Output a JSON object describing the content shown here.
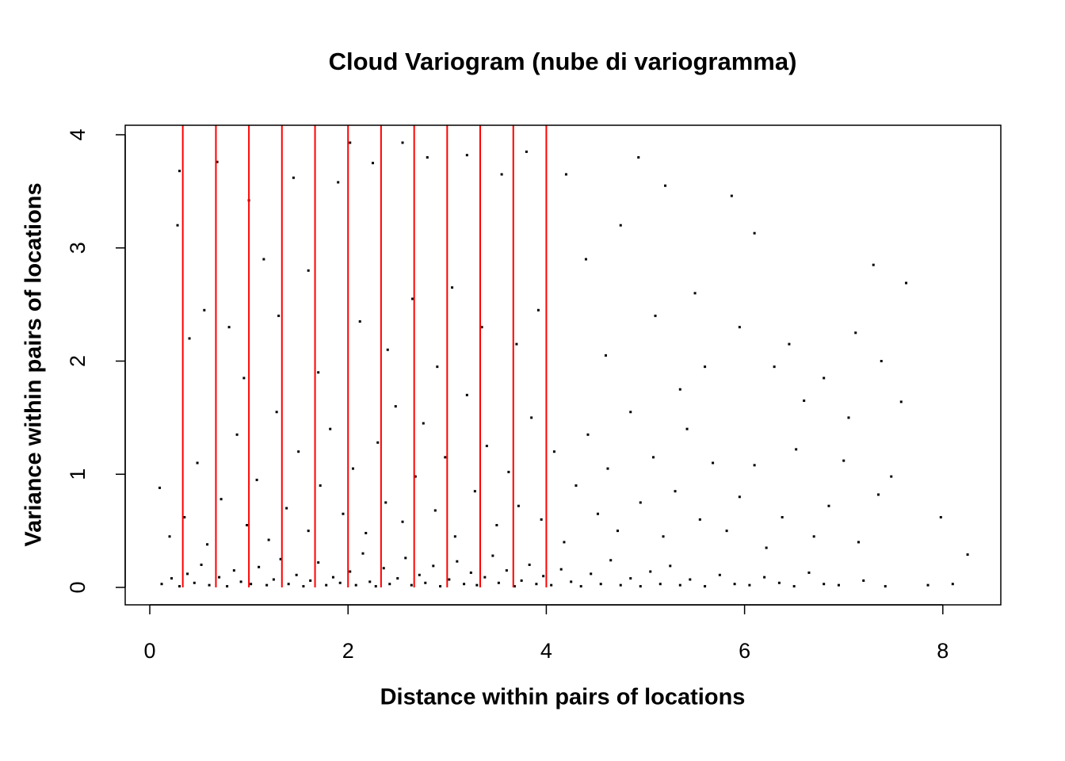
{
  "chart_data": {
    "type": "scatter",
    "title": "Cloud Variogram (nube di variogramma)",
    "x_label": "Distance within pairs of locations",
    "y_label": "Variance within pairs of locations",
    "color": "#000000",
    "xlim": [
      -0.248,
      8.585
    ],
    "ylim": [
      -0.154,
      4.084
    ],
    "xticks": [
      0,
      2,
      4,
      6,
      8
    ],
    "yticks": [
      0,
      1,
      2,
      3,
      4
    ],
    "vlines": [
      0.333,
      0.667,
      1.0,
      1.333,
      1.667,
      2.0,
      2.333,
      2.667,
      3.0,
      3.333,
      3.667,
      4.0
    ],
    "vline_color": "#ff0000",
    "x": [
      0.12,
      0.22,
      0.3,
      0.38,
      0.45,
      0.52,
      0.6,
      0.7,
      0.78,
      0.85,
      0.92,
      1.02,
      1.1,
      1.18,
      1.25,
      1.32,
      1.4,
      1.48,
      1.55,
      1.62,
      1.7,
      1.78,
      1.85,
      1.92,
      2.02,
      2.08,
      2.15,
      2.22,
      2.28,
      2.36,
      2.42,
      2.5,
      2.58,
      2.64,
      2.72,
      2.78,
      2.86,
      2.93,
      3.02,
      3.1,
      3.17,
      3.24,
      3.3,
      3.38,
      3.46,
      3.52,
      3.6,
      3.68,
      3.75,
      3.83,
      3.9,
      3.97,
      4.05,
      4.15,
      4.25,
      4.35,
      4.45,
      4.55,
      4.65,
      4.75,
      4.85,
      4.95,
      5.05,
      5.15,
      5.25,
      5.35,
      5.45,
      5.6,
      5.75,
      5.9,
      6.05,
      6.2,
      6.35,
      6.5,
      6.65,
      6.8,
      6.95,
      7.2,
      7.42,
      7.85,
      8.1,
      0.1,
      0.2,
      0.35,
      0.48,
      0.58,
      0.72,
      0.88,
      0.98,
      1.08,
      1.2,
      1.28,
      1.38,
      1.5,
      1.6,
      1.72,
      1.82,
      1.95,
      2.05,
      2.18,
      2.3,
      2.38,
      2.48,
      2.55,
      2.68,
      2.76,
      2.88,
      2.98,
      3.08,
      3.2,
      3.28,
      3.4,
      3.5,
      3.62,
      3.72,
      3.85,
      3.95,
      4.08,
      4.18,
      4.3,
      4.42,
      4.52,
      4.62,
      4.72,
      4.85,
      4.95,
      5.08,
      5.18,
      5.3,
      5.42,
      5.55,
      5.68,
      5.82,
      5.95,
      6.1,
      6.22,
      6.38,
      6.52,
      6.7,
      6.85,
      7.0,
      7.15,
      7.35,
      7.48,
      0.28,
      0.3,
      0.4,
      0.55,
      0.68,
      0.8,
      0.95,
      1.0,
      1.15,
      1.3,
      1.45,
      1.6,
      1.7,
      1.9,
      2.02,
      2.12,
      2.25,
      2.4,
      2.55,
      2.65,
      2.8,
      2.9,
      3.05,
      3.2,
      3.35,
      3.55,
      3.7,
      3.8,
      3.92,
      4.2,
      4.4,
      4.6,
      4.75,
      4.93,
      5.1,
      5.2,
      5.35,
      5.5,
      5.6,
      5.87,
      5.95,
      6.1,
      6.3,
      6.45,
      6.6,
      6.8,
      7.05,
      7.12,
      7.3,
      7.38,
      7.58,
      7.63,
      7.98,
      8.25
    ],
    "values": [
      0.03,
      0.08,
      0.01,
      0.12,
      0.04,
      0.2,
      0.02,
      0.09,
      0.01,
      0.15,
      0.05,
      0.03,
      0.18,
      0.02,
      0.07,
      0.25,
      0.03,
      0.11,
      0.01,
      0.06,
      0.22,
      0.02,
      0.09,
      0.04,
      0.14,
      0.02,
      0.3,
      0.05,
      0.01,
      0.17,
      0.03,
      0.08,
      0.26,
      0.02,
      0.11,
      0.04,
      0.19,
      0.01,
      0.07,
      0.23,
      0.03,
      0.13,
      0.02,
      0.09,
      0.28,
      0.04,
      0.15,
      0.01,
      0.06,
      0.2,
      0.03,
      0.1,
      0.02,
      0.16,
      0.05,
      0.01,
      0.12,
      0.03,
      0.24,
      0.02,
      0.08,
      0.01,
      0.14,
      0.03,
      0.19,
      0.02,
      0.07,
      0.01,
      0.11,
      0.03,
      0.02,
      0.09,
      0.04,
      0.01,
      0.13,
      0.03,
      0.02,
      0.06,
      0.01,
      0.02,
      0.03,
      0.88,
      0.45,
      0.62,
      1.1,
      0.38,
      0.78,
      1.35,
      0.55,
      0.95,
      0.42,
      1.55,
      0.7,
      1.2,
      0.5,
      0.9,
      1.4,
      0.65,
      1.05,
      0.48,
      1.28,
      0.75,
      1.6,
      0.58,
      0.98,
      1.45,
      0.68,
      1.15,
      0.45,
      1.7,
      0.85,
      1.25,
      0.55,
      1.02,
      0.72,
      1.5,
      0.6,
      1.2,
      0.4,
      0.9,
      1.35,
      0.65,
      1.05,
      0.5,
      1.55,
      0.75,
      1.15,
      0.45,
      0.85,
      1.4,
      0.6,
      1.1,
      0.5,
      0.8,
      1.08,
      0.35,
      0.62,
      1.22,
      0.45,
      0.72,
      1.12,
      0.4,
      0.82,
      0.98,
      3.2,
      3.68,
      2.2,
      2.45,
      3.76,
      2.3,
      1.85,
      3.42,
      2.9,
      2.4,
      3.62,
      2.8,
      1.9,
      3.58,
      3.93,
      2.35,
      3.75,
      2.1,
      3.93,
      2.55,
      3.8,
      1.95,
      2.65,
      3.82,
      2.3,
      3.65,
      2.15,
      3.85,
      2.45,
      3.65,
      2.9,
      2.05,
      3.2,
      3.8,
      2.4,
      3.55,
      1.75,
      2.6,
      1.95,
      3.46,
      2.3,
      3.13,
      1.95,
      2.15,
      1.65,
      1.85,
      1.5,
      2.25,
      2.85,
      2.0,
      1.64,
      2.69,
      0.62,
      0.29
    ]
  }
}
